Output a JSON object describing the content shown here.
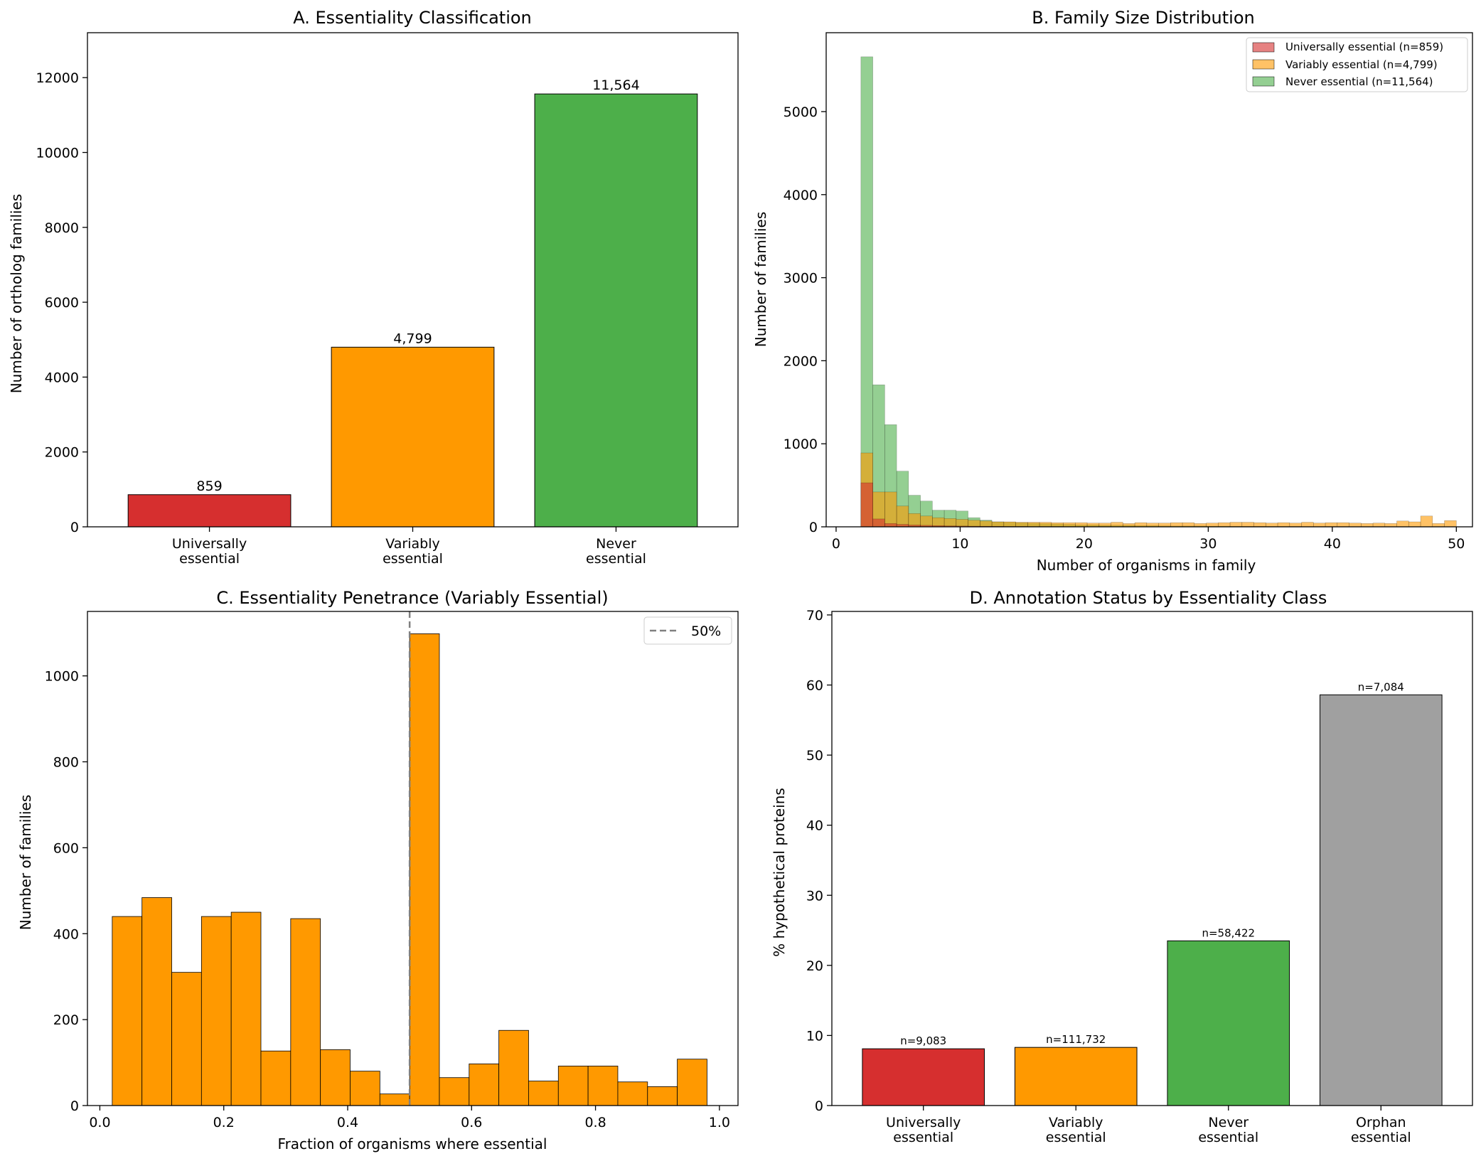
{
  "chart_data": [
    {
      "id": "A",
      "type": "bar",
      "title": "A. Essentiality Classification",
      "xlabel": "",
      "ylabel": "Number of ortholog families",
      "categories": [
        [
          "Universally",
          "essential"
        ],
        [
          "Variably",
          "essential"
        ],
        [
          "Never",
          "essential"
        ]
      ],
      "values": [
        859,
        4799,
        11564
      ],
      "value_labels": [
        "859",
        "4,799",
        "11,564"
      ],
      "colors": [
        "#d62f2f",
        "#ff9900",
        "#4daf4a"
      ],
      "ylim": [
        0,
        13200
      ],
      "yticks": [
        0,
        2000,
        4000,
        6000,
        8000,
        10000,
        12000
      ],
      "grid": false
    },
    {
      "id": "B",
      "type": "bar",
      "subtype": "overlaid-histogram",
      "title": "B. Family Size Distribution",
      "xlabel": "Number of organisms in family",
      "ylabel": "Number of families",
      "xlim": [
        -0.8,
        51.3
      ],
      "ylim": [
        0,
        5950
      ],
      "xticks": [
        0,
        10,
        20,
        30,
        40,
        50
      ],
      "yticks": [
        0,
        1000,
        2000,
        3000,
        4000,
        5000
      ],
      "bin_start": 2,
      "bin_width": 0.96,
      "legend_position": "top-right",
      "series": [
        {
          "name": "Universally essential (n=859)",
          "color": "#d62f2f",
          "opacity": 0.6,
          "values": [
            530,
            95,
            40,
            30,
            22,
            18,
            15,
            12,
            10,
            8,
            7,
            6,
            5,
            5,
            4,
            4,
            4,
            3,
            3,
            3,
            3,
            3,
            3,
            2,
            2,
            2,
            2,
            2,
            2,
            2,
            2,
            2,
            2,
            2,
            2,
            2,
            2,
            2,
            2,
            2,
            2,
            2,
            2,
            2,
            2,
            2,
            2,
            2,
            2
          ]
        },
        {
          "name": "Variably essential (n=4,799)",
          "color": "#ff9900",
          "opacity": 0.6,
          "values": [
            890,
            420,
            420,
            250,
            160,
            130,
            110,
            100,
            90,
            80,
            70,
            60,
            60,
            55,
            55,
            55,
            50,
            50,
            50,
            45,
            45,
            55,
            40,
            50,
            45,
            45,
            50,
            50,
            40,
            45,
            50,
            55,
            55,
            50,
            45,
            50,
            45,
            55,
            45,
            50,
            50,
            45,
            40,
            45,
            40,
            70,
            60,
            130,
            40,
            75
          ]
        },
        {
          "name": "Never essential (n=11,564)",
          "color": "#4daf4a",
          "opacity": 0.6,
          "values": [
            5660,
            1710,
            1230,
            670,
            380,
            310,
            200,
            200,
            190,
            110,
            80,
            60,
            55,
            50,
            45,
            40,
            35,
            30,
            25,
            25,
            20,
            20,
            20,
            15,
            15,
            12,
            10,
            10,
            10,
            8,
            8,
            7,
            6,
            6,
            5,
            5,
            5,
            4,
            4,
            4,
            4,
            3,
            3,
            3,
            3,
            3,
            3,
            3,
            3
          ]
        }
      ]
    },
    {
      "id": "C",
      "type": "bar",
      "subtype": "histogram",
      "title": "C. Essentiality Penetrance (Variably Essential)",
      "xlabel": "Fraction of organisms where essential",
      "ylabel": "Number of families",
      "xlim": [
        -0.02,
        1.03
      ],
      "ylim": [
        0,
        1150
      ],
      "xticks": [
        0.0,
        0.2,
        0.4,
        0.6,
        0.8,
        1.0
      ],
      "xtick_labels": [
        "0.0",
        "0.2",
        "0.4",
        "0.6",
        "0.8",
        "1.0"
      ],
      "yticks": [
        0,
        200,
        400,
        600,
        800,
        1000
      ],
      "bin_start": 0.02,
      "bin_width": 0.048,
      "values": [
        440,
        484,
        310,
        440,
        450,
        127,
        435,
        130,
        80,
        27,
        1098,
        65,
        97,
        175,
        57,
        92,
        92,
        55,
        44,
        108
      ],
      "color": "#ff9900",
      "reference_line": {
        "x": 0.5,
        "label": "50%",
        "color": "#808080"
      },
      "legend_position": "top-right"
    },
    {
      "id": "D",
      "type": "bar",
      "title": "D. Annotation Status by Essentiality Class",
      "xlabel": "",
      "ylabel": "% hypothetical proteins",
      "categories": [
        [
          "Universally",
          "essential"
        ],
        [
          "Variably",
          "essential"
        ],
        [
          "Never",
          "essential"
        ],
        [
          "Orphan",
          "essential"
        ]
      ],
      "values": [
        8.1,
        8.3,
        23.5,
        58.6
      ],
      "value_labels": [
        "n=9,083",
        "n=111,732",
        "n=58,422",
        "n=7,084"
      ],
      "colors": [
        "#d62f2f",
        "#ff9900",
        "#4daf4a",
        "#a0a0a0"
      ],
      "ylim": [
        0,
        70.5
      ],
      "yticks": [
        0,
        10,
        20,
        30,
        40,
        50,
        60,
        70
      ],
      "grid": false
    }
  ]
}
